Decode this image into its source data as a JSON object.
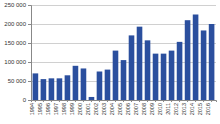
{
  "chart_data": {
    "type": "bar",
    "categories": [
      "1994",
      "1995",
      "1996",
      "1997",
      "1998",
      "1999",
      "2000",
      "2001",
      "2002",
      "2003",
      "2004",
      "2005",
      "2006",
      "2007",
      "2008",
      "2009",
      "2010",
      "2011",
      "2012",
      "2013",
      "2014",
      "2015",
      "2016"
    ],
    "values": [
      70000,
      55000,
      57000,
      57000,
      65000,
      90000,
      83000,
      8000,
      75000,
      80000,
      130000,
      105000,
      170000,
      193000,
      157000,
      122000,
      122000,
      130000,
      153000,
      210000,
      225000,
      183000,
      200000
    ],
    "color": "#2b4f9e",
    "ylim": [
      0,
      250000
    ],
    "yticks": [
      0,
      {
        "value": 50000,
        "label": "50 000"
      },
      {
        "value": 100000,
        "label": "100 000"
      },
      {
        "value": 150000,
        "label": "150 000"
      },
      {
        "value": 200000,
        "label": "200 000"
      },
      {
        "value": 250000,
        "label": "250 000"
      }
    ],
    "grid": true
  }
}
